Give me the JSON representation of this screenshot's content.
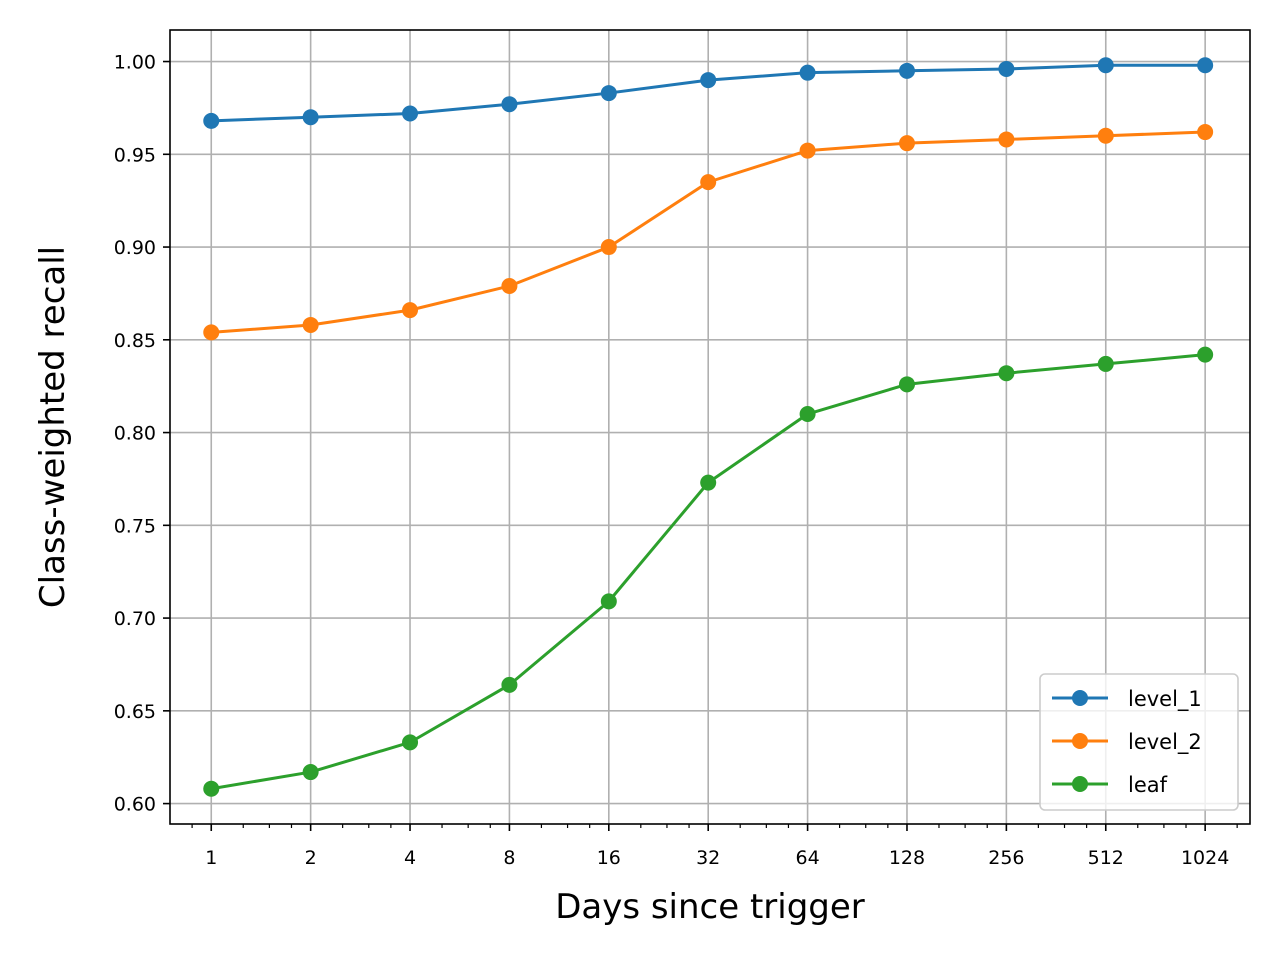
{
  "chart_data": {
    "type": "line",
    "title": "",
    "xlabel": "Days since trigger",
    "ylabel": "Class-weighted recall",
    "x_scale": "log2",
    "x": [
      1,
      2,
      4,
      8,
      16,
      32,
      64,
      128,
      256,
      512,
      1024
    ],
    "x_tick_labels": [
      "1",
      "2",
      "4",
      "8",
      "16",
      "32",
      "64",
      "128",
      "256",
      "512",
      "1024"
    ],
    "xlim": [
      0.75,
      1400
    ],
    "y_ticks": [
      0.6,
      0.65,
      0.7,
      0.75,
      0.8,
      0.85,
      0.9,
      0.95,
      1.0
    ],
    "y_tick_labels": [
      "0.60",
      "0.65",
      "0.70",
      "0.75",
      "0.80",
      "0.85",
      "0.90",
      "0.95",
      "1.00"
    ],
    "ylim": [
      0.589,
      1.017
    ],
    "grid": true,
    "legend_position": "lower-right",
    "series": [
      {
        "name": "level_1",
        "color": "#1f77b4",
        "marker": "circle",
        "values": [
          0.968,
          0.97,
          0.972,
          0.977,
          0.983,
          0.99,
          0.994,
          0.995,
          0.996,
          0.998,
          0.998
        ]
      },
      {
        "name": "level_2",
        "color": "#ff7f0e",
        "marker": "circle",
        "values": [
          0.854,
          0.858,
          0.866,
          0.879,
          0.9,
          0.935,
          0.952,
          0.956,
          0.958,
          0.96,
          0.962
        ]
      },
      {
        "name": "leaf",
        "color": "#2ca02c",
        "marker": "circle",
        "values": [
          0.608,
          0.617,
          0.633,
          0.664,
          0.709,
          0.773,
          0.81,
          0.826,
          0.832,
          0.837,
          0.842
        ]
      }
    ]
  }
}
